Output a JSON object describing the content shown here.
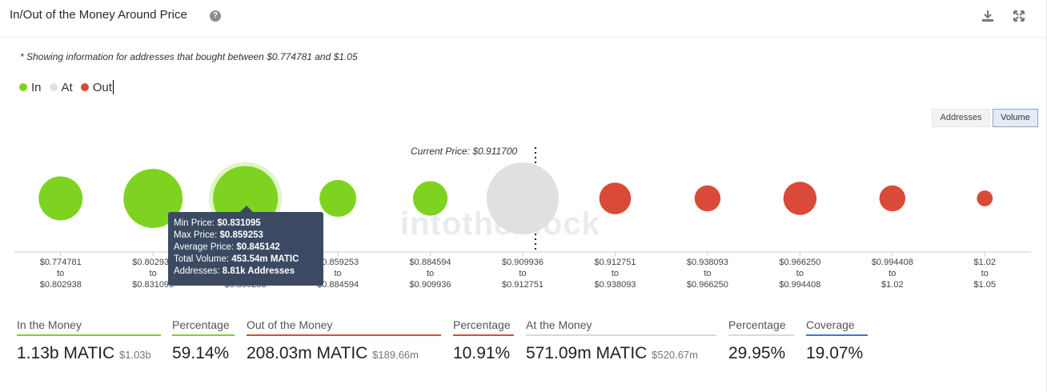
{
  "header": {
    "title": "In/Out of the Money Around Price",
    "help_icon": "?"
  },
  "note": "* Showing information for addresses that bought between $0.774781 and $1.05",
  "legend": [
    {
      "label": "In",
      "color": "#7ed321"
    },
    {
      "label": "At",
      "color": "#e0e0e0"
    },
    {
      "label": "Out",
      "color": "#d94a38"
    }
  ],
  "toggles": {
    "addresses": "Addresses",
    "volume": "Volume",
    "active": "Volume"
  },
  "chart_data": {
    "type": "scatter",
    "current_price_label": "Current Price: $0.911700",
    "categories": [
      {
        "from": "$0.774781",
        "to": "$0.802938",
        "status": "in"
      },
      {
        "from": "$0.802938",
        "to": "$0.831095",
        "status": "in"
      },
      {
        "from": "$0.831095",
        "to": "$0.859253",
        "status": "in"
      },
      {
        "from": "$0.859253",
        "to": "$0.884594",
        "status": "in"
      },
      {
        "from": "$0.884594",
        "to": "$0.909936",
        "status": "in"
      },
      {
        "from": "$0.909936",
        "to": "$0.912751",
        "status": "at"
      },
      {
        "from": "$0.912751",
        "to": "$0.938093",
        "status": "out"
      },
      {
        "from": "$0.938093",
        "to": "$0.966250",
        "status": "out"
      },
      {
        "from": "$0.966250",
        "to": "$0.994408",
        "status": "out"
      },
      {
        "from": "$0.994408",
        "to": "$1.02",
        "status": "out"
      },
      {
        "from": "$1.02",
        "to": "$1.05",
        "status": "out"
      }
    ],
    "relative_size": [
      0.61,
      0.82,
      0.9,
      0.51,
      0.48,
      1.0,
      0.44,
      0.36,
      0.46,
      0.36,
      0.22
    ],
    "to_word": "to"
  },
  "tooltip": {
    "min_price_label": "Min Price:",
    "min_price": "$0.831095",
    "max_price_label": "Max Price:",
    "max_price": "$0.859253",
    "avg_price_label": "Average Price:",
    "avg_price": "$0.845142",
    "volume_label": "Total Volume:",
    "volume": "453.54m MATIC",
    "addresses_label": "Addresses:",
    "addresses": "8.81k Addresses"
  },
  "watermark": "intotheblock",
  "stats": {
    "in_label": "In the Money",
    "in_value": "1.13b MATIC",
    "in_usd": "$1.03b",
    "in_pct_label": "Percentage",
    "in_pct": "59.14%",
    "out_label": "Out of the Money",
    "out_value": "208.03m MATIC",
    "out_usd": "$189.66m",
    "out_pct_label": "Percentage",
    "out_pct": "10.91%",
    "at_label": "At the Money",
    "at_value": "571.09m MATIC",
    "at_usd": "$520.67m",
    "at_pct_label": "Percentage",
    "at_pct": "29.95%",
    "coverage_label": "Coverage",
    "coverage": "19.07%"
  },
  "colors": {
    "in": "#7ed321",
    "at": "#e0e0e0",
    "out": "#d94a38",
    "coverage": "#3a78d8"
  }
}
